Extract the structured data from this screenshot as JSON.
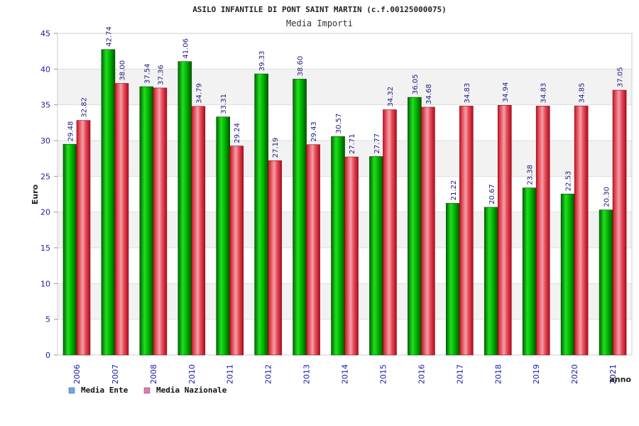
{
  "chart_data": {
    "type": "bar",
    "title": "ASILO INFANTILE DI PONT SAINT MARTIN (c.f.00125000075)",
    "subtitle": "Media Importi",
    "ylabel": "Euro",
    "xlabel": "anno",
    "ylim": [
      0,
      45
    ],
    "yticks": [
      0,
      5,
      10,
      15,
      20,
      25,
      30,
      35,
      40,
      45
    ],
    "grid": true,
    "legend_position": "bottom-left",
    "categories": [
      "2006",
      "2007",
      "2008",
      "2010",
      "2011",
      "2012",
      "2013",
      "2014",
      "2015",
      "2016",
      "2017",
      "2018",
      "2019",
      "2020",
      "2021"
    ],
    "series": [
      {
        "name": "Media Ente",
        "color": "#00aa00",
        "legend_color": "#66aaee",
        "values": [
          29.48,
          42.74,
          37.54,
          41.06,
          33.31,
          39.33,
          38.6,
          30.57,
          27.77,
          36.05,
          21.22,
          20.67,
          23.38,
          22.53,
          20.3
        ],
        "labels": [
          "29.48",
          "42.74",
          "37.54",
          "41.06",
          "33.31",
          "39.33",
          "38.60",
          "30.57",
          "27.77",
          "36.05",
          "21.22",
          "20.67",
          "23.38",
          "22.53",
          "20.30"
        ]
      },
      {
        "name": "Media Nazionale",
        "color": "#dd2233",
        "legend_color": "#e07ab0",
        "values": [
          32.82,
          38.0,
          37.36,
          34.79,
          29.24,
          27.19,
          29.43,
          27.71,
          34.32,
          34.68,
          34.83,
          34.94,
          34.83,
          34.85,
          37.05
        ],
        "labels": [
          "32.82",
          "38.00",
          "37.36",
          "34.79",
          "29.24",
          "27.19",
          "29.43",
          "27.71",
          "34.32",
          "34.68",
          "34.83",
          "34.94",
          "34.83",
          "34.85",
          "37.05"
        ]
      }
    ]
  }
}
